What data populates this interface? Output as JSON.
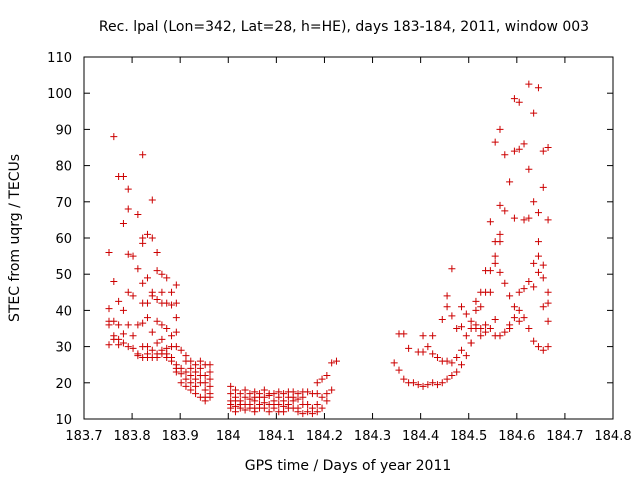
{
  "chart_data": {
    "type": "scatter",
    "title": "Rec. lpal (Lon=342, Lat=28, h=HE), days 183-184, 2011, window 003",
    "xlabel": "GPS time / Days of year 2011",
    "ylabel": "STEC from uqrg / TECUs",
    "xlim": [
      183.7,
      184.8
    ],
    "ylim": [
      10,
      110
    ],
    "x_ticks": [
      183.7,
      183.8,
      183.9,
      184.0,
      184.1,
      184.2,
      184.3,
      184.4,
      184.5,
      184.6,
      184.7,
      184.8
    ],
    "x_tick_labels": [
      "183.7",
      "183.8",
      "183.9",
      "184",
      "184.1",
      "184.2",
      "184.3",
      "184.4",
      "184.5",
      "184.6",
      "184.7",
      "184.8"
    ],
    "y_ticks": [
      10,
      20,
      30,
      40,
      50,
      60,
      70,
      80,
      90,
      100,
      110
    ],
    "y_tick_labels": [
      "10",
      "20",
      "30",
      "40",
      "50",
      "60",
      "70",
      "80",
      "90",
      "100",
      "110"
    ],
    "grid": false,
    "legend": "none",
    "marker": "+",
    "color": "#cc0000",
    "points": [
      [
        183.752,
        56
      ],
      [
        183.752,
        40.5
      ],
      [
        183.752,
        37
      ],
      [
        183.752,
        36
      ],
      [
        183.752,
        30.5
      ],
      [
        183.762,
        88
      ],
      [
        183.762,
        48
      ],
      [
        183.762,
        37
      ],
      [
        183.762,
        33
      ],
      [
        183.762,
        32
      ],
      [
        183.772,
        77
      ],
      [
        183.772,
        42.5
      ],
      [
        183.772,
        36
      ],
      [
        183.772,
        32
      ],
      [
        183.772,
        30.5
      ],
      [
        183.782,
        77
      ],
      [
        183.782,
        64
      ],
      [
        183.782,
        40
      ],
      [
        183.782,
        33.5
      ],
      [
        183.782,
        31
      ],
      [
        183.792,
        73.5
      ],
      [
        183.792,
        68
      ],
      [
        183.792,
        55.5
      ],
      [
        183.792,
        45
      ],
      [
        183.792,
        36
      ],
      [
        183.792,
        30
      ],
      [
        183.802,
        55
      ],
      [
        183.802,
        44
      ],
      [
        183.802,
        33
      ],
      [
        183.802,
        29.5
      ],
      [
        183.812,
        66.5
      ],
      [
        183.812,
        51.5
      ],
      [
        183.812,
        36
      ],
      [
        183.812,
        28
      ],
      [
        183.812,
        27.5
      ],
      [
        183.822,
        83
      ],
      [
        183.822,
        60
      ],
      [
        183.822,
        58.5
      ],
      [
        183.822,
        47.5
      ],
      [
        183.822,
        42
      ],
      [
        183.822,
        36.5
      ],
      [
        183.822,
        30
      ],
      [
        183.822,
        27
      ],
      [
        183.832,
        61
      ],
      [
        183.832,
        49
      ],
      [
        183.832,
        42
      ],
      [
        183.832,
        38
      ],
      [
        183.832,
        30
      ],
      [
        183.832,
        28
      ],
      [
        183.832,
        27
      ],
      [
        183.842,
        70.5
      ],
      [
        183.842,
        60
      ],
      [
        183.842,
        45
      ],
      [
        183.842,
        44
      ],
      [
        183.842,
        34
      ],
      [
        183.842,
        29
      ],
      [
        183.842,
        27
      ],
      [
        183.852,
        56
      ],
      [
        183.852,
        51
      ],
      [
        183.852,
        43
      ],
      [
        183.852,
        37
      ],
      [
        183.852,
        31
      ],
      [
        183.852,
        28
      ],
      [
        183.852,
        27
      ],
      [
        183.862,
        50
      ],
      [
        183.862,
        45
      ],
      [
        183.862,
        42
      ],
      [
        183.862,
        36
      ],
      [
        183.862,
        32
      ],
      [
        183.862,
        29
      ],
      [
        183.862,
        28
      ],
      [
        183.872,
        49
      ],
      [
        183.872,
        42
      ],
      [
        183.872,
        35
      ],
      [
        183.872,
        29.5
      ],
      [
        183.872,
        28
      ],
      [
        183.872,
        27
      ],
      [
        183.882,
        45
      ],
      [
        183.882,
        41.5
      ],
      [
        183.882,
        33
      ],
      [
        183.882,
        30
      ],
      [
        183.882,
        27
      ],
      [
        183.882,
        26
      ],
      [
        183.892,
        47
      ],
      [
        183.892,
        42
      ],
      [
        183.892,
        38
      ],
      [
        183.892,
        34
      ],
      [
        183.892,
        30
      ],
      [
        183.892,
        25
      ],
      [
        183.892,
        24
      ],
      [
        183.892,
        23
      ],
      [
        183.902,
        29
      ],
      [
        183.902,
        24
      ],
      [
        183.902,
        22.5
      ],
      [
        183.902,
        20
      ],
      [
        183.912,
        27.5
      ],
      [
        183.912,
        26
      ],
      [
        183.912,
        23
      ],
      [
        183.912,
        21
      ],
      [
        183.912,
        19
      ],
      [
        183.922,
        26
      ],
      [
        183.922,
        24
      ],
      [
        183.922,
        22
      ],
      [
        183.922,
        20
      ],
      [
        183.922,
        18
      ],
      [
        183.932,
        25
      ],
      [
        183.932,
        23
      ],
      [
        183.932,
        21
      ],
      [
        183.932,
        19
      ],
      [
        183.932,
        17
      ],
      [
        183.942,
        26
      ],
      [
        183.942,
        24
      ],
      [
        183.942,
        22
      ],
      [
        183.942,
        20
      ],
      [
        183.942,
        16
      ],
      [
        183.952,
        25
      ],
      [
        183.952,
        22
      ],
      [
        183.952,
        20
      ],
      [
        183.952,
        18
      ],
      [
        183.952,
        16
      ],
      [
        183.952,
        15
      ],
      [
        183.962,
        25
      ],
      [
        183.962,
        23
      ],
      [
        183.962,
        21
      ],
      [
        183.962,
        19
      ],
      [
        183.962,
        17
      ],
      [
        183.962,
        16
      ],
      [
        184.005,
        19
      ],
      [
        184.005,
        17
      ],
      [
        184.005,
        15
      ],
      [
        184.005,
        14
      ],
      [
        184.005,
        13
      ],
      [
        184.015,
        18
      ],
      [
        184.015,
        16
      ],
      [
        184.015,
        15
      ],
      [
        184.015,
        13.5
      ],
      [
        184.015,
        12
      ],
      [
        184.025,
        17
      ],
      [
        184.025,
        15
      ],
      [
        184.025,
        14
      ],
      [
        184.025,
        13
      ],
      [
        184.035,
        18
      ],
      [
        184.035,
        16
      ],
      [
        184.035,
        14
      ],
      [
        184.035,
        12.5
      ],
      [
        184.045,
        17
      ],
      [
        184.045,
        15.5
      ],
      [
        184.045,
        14
      ],
      [
        184.045,
        13
      ],
      [
        184.055,
        17.5
      ],
      [
        184.055,
        16
      ],
      [
        184.055,
        15
      ],
      [
        184.055,
        13
      ],
      [
        184.055,
        12
      ],
      [
        184.065,
        17
      ],
      [
        184.065,
        16
      ],
      [
        184.065,
        14
      ],
      [
        184.065,
        13
      ],
      [
        184.075,
        18
      ],
      [
        184.075,
        16
      ],
      [
        184.075,
        14.5
      ],
      [
        184.075,
        13
      ],
      [
        184.085,
        17
      ],
      [
        184.085,
        16.5
      ],
      [
        184.085,
        14
      ],
      [
        184.085,
        12
      ],
      [
        184.095,
        17
      ],
      [
        184.095,
        15
      ],
      [
        184.095,
        14
      ],
      [
        184.095,
        13
      ],
      [
        184.105,
        17.5
      ],
      [
        184.105,
        16
      ],
      [
        184.105,
        14
      ],
      [
        184.105,
        12
      ],
      [
        184.115,
        17
      ],
      [
        184.115,
        15
      ],
      [
        184.115,
        13.5
      ],
      [
        184.115,
        12
      ],
      [
        184.125,
        17.5
      ],
      [
        184.125,
        16
      ],
      [
        184.125,
        14
      ],
      [
        184.125,
        13
      ],
      [
        184.135,
        17.5
      ],
      [
        184.135,
        16
      ],
      [
        184.135,
        15
      ],
      [
        184.135,
        13
      ],
      [
        184.145,
        17
      ],
      [
        184.145,
        15.5
      ],
      [
        184.145,
        13
      ],
      [
        184.145,
        12
      ],
      [
        184.155,
        17.5
      ],
      [
        184.155,
        16
      ],
      [
        184.155,
        14
      ],
      [
        184.155,
        11.5
      ],
      [
        184.165,
        17.5
      ],
      [
        184.165,
        14
      ],
      [
        184.165,
        12
      ],
      [
        184.175,
        17
      ],
      [
        184.175,
        13
      ],
      [
        184.175,
        11.5
      ],
      [
        184.185,
        20
      ],
      [
        184.185,
        17
      ],
      [
        184.185,
        14
      ],
      [
        184.185,
        12
      ],
      [
        184.195,
        21
      ],
      [
        184.195,
        16
      ],
      [
        184.195,
        13
      ],
      [
        184.205,
        22
      ],
      [
        184.205,
        17
      ],
      [
        184.205,
        15
      ],
      [
        184.215,
        25.5
      ],
      [
        184.215,
        18
      ],
      [
        184.225,
        26
      ],
      [
        184.345,
        25.5
      ],
      [
        184.355,
        33.5
      ],
      [
        184.355,
        23.5
      ],
      [
        184.365,
        33.5
      ],
      [
        184.365,
        21
      ],
      [
        184.375,
        29.5
      ],
      [
        184.375,
        20
      ],
      [
        184.385,
        20
      ],
      [
        184.395,
        28.5
      ],
      [
        184.395,
        19.5
      ],
      [
        184.405,
        33
      ],
      [
        184.405,
        28.5
      ],
      [
        184.405,
        19
      ],
      [
        184.415,
        30
      ],
      [
        184.415,
        19.5
      ],
      [
        184.425,
        33
      ],
      [
        184.425,
        28
      ],
      [
        184.425,
        20
      ],
      [
        184.435,
        27
      ],
      [
        184.435,
        19.5
      ],
      [
        184.445,
        37.5
      ],
      [
        184.445,
        26
      ],
      [
        184.445,
        20
      ],
      [
        184.455,
        44
      ],
      [
        184.455,
        41
      ],
      [
        184.455,
        26
      ],
      [
        184.455,
        21
      ],
      [
        184.465,
        51.5
      ],
      [
        184.465,
        38.5
      ],
      [
        184.465,
        25.5
      ],
      [
        184.465,
        22
      ],
      [
        184.475,
        35
      ],
      [
        184.475,
        27
      ],
      [
        184.475,
        23
      ],
      [
        184.485,
        41
      ],
      [
        184.485,
        35.5
      ],
      [
        184.485,
        29
      ],
      [
        184.485,
        25
      ],
      [
        184.495,
        39
      ],
      [
        184.495,
        33
      ],
      [
        184.495,
        27.5
      ],
      [
        184.505,
        37
      ],
      [
        184.505,
        35
      ],
      [
        184.505,
        31
      ],
      [
        184.505,
        31
      ],
      [
        184.515,
        42.5
      ],
      [
        184.515,
        40
      ],
      [
        184.515,
        36
      ],
      [
        184.515,
        35
      ],
      [
        184.525,
        45
      ],
      [
        184.525,
        41
      ],
      [
        184.525,
        35
      ],
      [
        184.525,
        33
      ],
      [
        184.535,
        51
      ],
      [
        184.535,
        45
      ],
      [
        184.535,
        36
      ],
      [
        184.535,
        34
      ],
      [
        184.545,
        64.5
      ],
      [
        184.545,
        51
      ],
      [
        184.545,
        45
      ],
      [
        184.545,
        35
      ],
      [
        184.555,
        86.5
      ],
      [
        184.555,
        59
      ],
      [
        184.555,
        55
      ],
      [
        184.555,
        53
      ],
      [
        184.555,
        37.5
      ],
      [
        184.555,
        33
      ],
      [
        184.565,
        90
      ],
      [
        184.565,
        69
      ],
      [
        184.565,
        61
      ],
      [
        184.565,
        59
      ],
      [
        184.565,
        50.5
      ],
      [
        184.565,
        33
      ],
      [
        184.575,
        83
      ],
      [
        184.575,
        67.5
      ],
      [
        184.575,
        47.5
      ],
      [
        184.575,
        34
      ],
      [
        184.585,
        75.5
      ],
      [
        184.585,
        44
      ],
      [
        184.585,
        36
      ],
      [
        184.585,
        35
      ],
      [
        184.595,
        98.5
      ],
      [
        184.595,
        65.5
      ],
      [
        184.595,
        84
      ],
      [
        184.595,
        41
      ],
      [
        184.595,
        38
      ],
      [
        184.605,
        97.5
      ],
      [
        184.605,
        84.5
      ],
      [
        184.605,
        45
      ],
      [
        184.605,
        40
      ],
      [
        184.605,
        37
      ],
      [
        184.615,
        86
      ],
      [
        184.615,
        65
      ],
      [
        184.615,
        46
      ],
      [
        184.615,
        38
      ],
      [
        184.625,
        102.5
      ],
      [
        184.625,
        79
      ],
      [
        184.625,
        65.5
      ],
      [
        184.625,
        48
      ],
      [
        184.625,
        35
      ],
      [
        184.635,
        94.5
      ],
      [
        184.635,
        70
      ],
      [
        184.635,
        53
      ],
      [
        184.635,
        46.5
      ],
      [
        184.635,
        31.5
      ],
      [
        184.645,
        101.5
      ],
      [
        184.645,
        67
      ],
      [
        184.645,
        59
      ],
      [
        184.645,
        55
      ],
      [
        184.645,
        50.5
      ],
      [
        184.645,
        30
      ],
      [
        184.655,
        84
      ],
      [
        184.655,
        74
      ],
      [
        184.655,
        52.5
      ],
      [
        184.655,
        49
      ],
      [
        184.655,
        41
      ],
      [
        184.655,
        29
      ],
      [
        184.665,
        85
      ],
      [
        184.665,
        65
      ],
      [
        184.665,
        45
      ],
      [
        184.665,
        42
      ],
      [
        184.665,
        37
      ],
      [
        184.665,
        30
      ]
    ]
  }
}
